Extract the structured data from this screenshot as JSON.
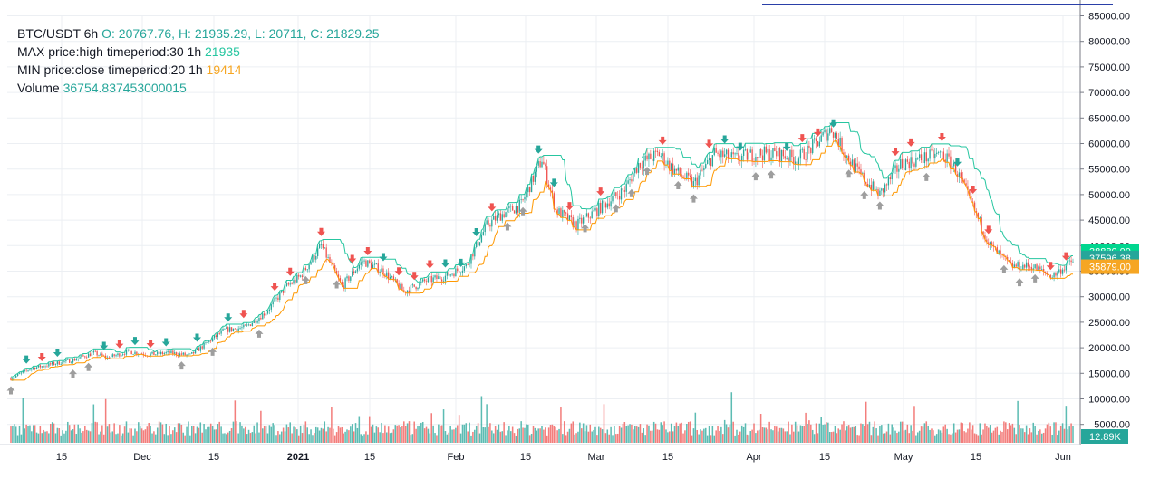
{
  "legend": {
    "symbol": "BTC/USDT 6h",
    "ohlc": "O: 20767.76, H: 21935.29, L: 20711, C: 21829.25",
    "max_label": "MAX price:high timeperiod:30 1h",
    "max_value": "21935",
    "min_label": "MIN price:close timeperiod:20 1h",
    "min_value": "19414",
    "volume_label": "Volume",
    "volume_value": "36754.837453000015"
  },
  "colors": {
    "up": "#26a69a",
    "down": "#ef5350",
    "max_line": "#26c6a0",
    "min_line": "#ff9800",
    "grid": "#eceff3",
    "axis_text": "#131722",
    "marker_gray": "#9e9e9e",
    "badge_max": "#00d68f",
    "badge_price": "#26a69a",
    "badge_min": "#f6a623",
    "blue_line": "#2a3fa8"
  },
  "chart_data": {
    "type": "candlestick",
    "y_axis": {
      "min": 0,
      "max": 85000,
      "ticks": [
        "85000.00",
        "80000.00",
        "75000.00",
        "70000.00",
        "65000.00",
        "60000.00",
        "55000.00",
        "50000.00",
        "45000.00",
        "40000.00",
        "35000.00",
        "30000.00",
        "25000.00",
        "20000.00",
        "15000.00",
        "10000.00",
        "5000.00"
      ]
    },
    "x_axis": {
      "ticks": [
        {
          "label": "15",
          "bold": false
        },
        {
          "label": "Dec",
          "bold": false
        },
        {
          "label": "15",
          "bold": false
        },
        {
          "label": "2021",
          "bold": true
        },
        {
          "label": "15",
          "bold": false
        },
        {
          "label": "Feb",
          "bold": false
        },
        {
          "label": "15",
          "bold": false
        },
        {
          "label": "Mar",
          "bold": false
        },
        {
          "label": "15",
          "bold": false
        },
        {
          "label": "Apr",
          "bold": false
        },
        {
          "label": "15",
          "bold": false
        },
        {
          "label": "May",
          "bold": false
        },
        {
          "label": "15",
          "bold": false
        },
        {
          "label": "Jun",
          "bold": false
        }
      ]
    },
    "price_path": [
      [
        0,
        14000
      ],
      [
        3,
        16000
      ],
      [
        6,
        16800
      ],
      [
        9,
        17600
      ],
      [
        12,
        19000
      ],
      [
        14,
        18000
      ],
      [
        17,
        19300
      ],
      [
        20,
        18700
      ],
      [
        23,
        19000
      ],
      [
        26,
        18500
      ],
      [
        29,
        21500
      ],
      [
        31,
        23500
      ],
      [
        34,
        24000
      ],
      [
        37,
        27000
      ],
      [
        40,
        32000
      ],
      [
        42,
        34000
      ],
      [
        45,
        40000
      ],
      [
        48,
        32000
      ],
      [
        51,
        37000
      ],
      [
        54,
        35000
      ],
      [
        57,
        31000
      ],
      [
        60,
        33000
      ],
      [
        63,
        34000
      ],
      [
        66,
        36000
      ],
      [
        69,
        44000
      ],
      [
        71,
        46000
      ],
      [
        74,
        48000
      ],
      [
        77,
        57000
      ],
      [
        79,
        47000
      ],
      [
        82,
        44000
      ],
      [
        86,
        48000
      ],
      [
        89,
        51000
      ],
      [
        91,
        56000
      ],
      [
        94,
        58000
      ],
      [
        96,
        55000
      ],
      [
        99,
        52000
      ],
      [
        102,
        58000
      ],
      [
        105,
        57000
      ],
      [
        108,
        58000
      ],
      [
        111,
        58000
      ],
      [
        114,
        57000
      ],
      [
        116,
        59000
      ],
      [
        119,
        63000
      ],
      [
        121,
        58000
      ],
      [
        123,
        54000
      ],
      [
        126,
        50000
      ],
      [
        129,
        56000
      ],
      [
        132,
        57000
      ],
      [
        135,
        58000
      ],
      [
        137,
        55000
      ],
      [
        140,
        46000
      ],
      [
        142,
        40000
      ],
      [
        145,
        36000
      ],
      [
        148,
        36000
      ],
      [
        151,
        34000
      ],
      [
        154,
        37000
      ]
    ],
    "max_line_value": 38880.0,
    "last_price": 37596.38,
    "min_line_value": 35879.0,
    "volume_last": "12.89K",
    "price_labels": {
      "max": "38880.00",
      "last": "37596.38",
      "min": "35879.00"
    }
  }
}
